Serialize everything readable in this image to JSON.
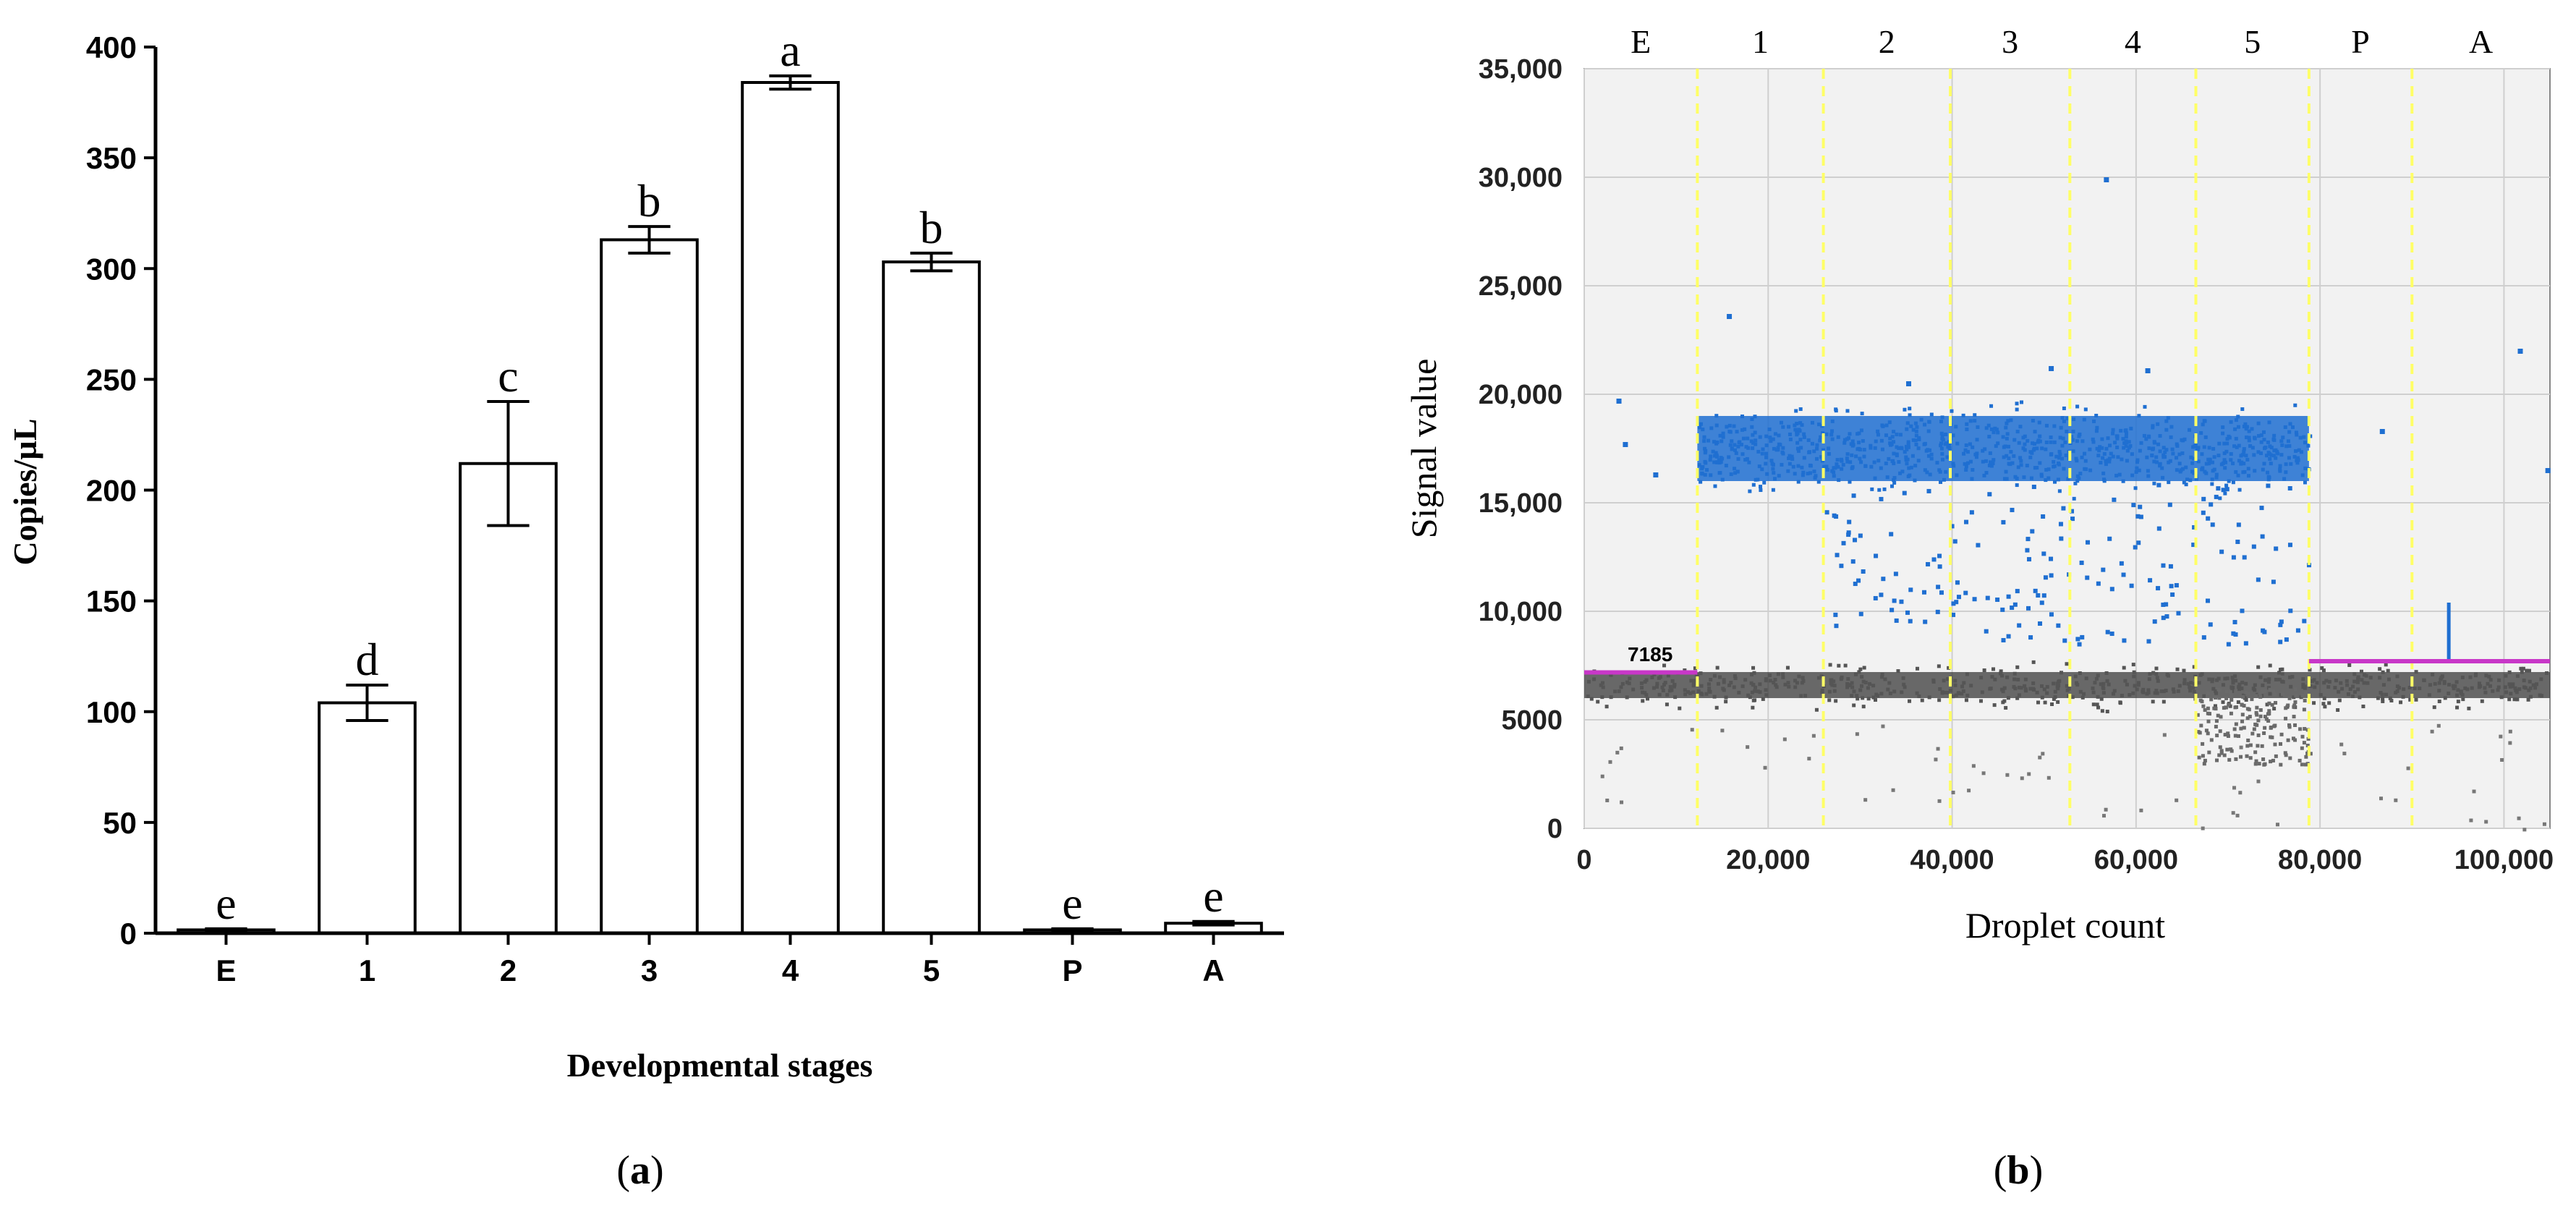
{
  "chart_data": [
    {
      "type": "bar",
      "panel_label": "a",
      "xlabel": "Developmental stages",
      "ylabel": "Copies/µL",
      "ylim": [
        0,
        400
      ],
      "yticks": [
        0,
        50,
        100,
        150,
        200,
        250,
        300,
        350,
        400
      ],
      "categories": [
        "E",
        "1",
        "2",
        "3",
        "4",
        "5",
        "P",
        "A"
      ],
      "values": [
        1.5,
        104,
        212,
        313,
        384,
        303,
        1.5,
        4.5
      ],
      "errors": [
        0.5,
        8,
        28,
        6,
        3,
        4,
        0.5,
        0.8
      ],
      "significance": [
        "e",
        "d",
        "c",
        "b",
        "a",
        "b",
        "e",
        "e"
      ],
      "colors": {
        "bar_fill": "#ffffff",
        "bar_stroke": "#000000"
      }
    },
    {
      "type": "scatter",
      "panel_label": "b",
      "xlabel": "Droplet count",
      "ylabel": "Signal value",
      "xlim": [
        0,
        105000
      ],
      "ylim": [
        0,
        35000
      ],
      "xticks": [
        {
          "value": 0,
          "label": "0"
        },
        {
          "value": 20000,
          "label": "20,000"
        },
        {
          "value": 40000,
          "label": "40,000"
        },
        {
          "value": 60000,
          "label": "60,000"
        },
        {
          "value": 80000,
          "label": "80,000"
        },
        {
          "value": 100000,
          "label": "100,000"
        }
      ],
      "yticks": [
        {
          "value": 0,
          "label": "0"
        },
        {
          "value": 5000,
          "label": "5000"
        },
        {
          "value": 10000,
          "label": "10,000"
        },
        {
          "value": 15000,
          "label": "15,000"
        },
        {
          "value": 20000,
          "label": "20,000"
        },
        {
          "value": 25000,
          "label": "25,000"
        },
        {
          "value": 30000,
          "label": "30,000"
        },
        {
          "value": 35000,
          "label": "35,000"
        }
      ],
      "lane_labels": [
        "E",
        "1",
        "2",
        "3",
        "4",
        "5",
        "P",
        "A"
      ],
      "lane_boundaries": [
        12300,
        26000,
        39800,
        52800,
        66500,
        78800,
        90000
      ],
      "threshold_label": "7185",
      "thresholds": [
        {
          "x_start": 0,
          "x_end": 12300,
          "value": 7185
        },
        {
          "x_start": 78800,
          "x_end": 105000,
          "value": 7700
        }
      ],
      "positive_band": {
        "x_start": 12300,
        "x_end": 78800,
        "center": 17500,
        "spread": 1500
      },
      "negative_band": {
        "x_start": 0,
        "x_end": 105000,
        "center": 6600,
        "spread": 600
      },
      "outliers": [
        {
          "x": 3500,
          "y": 19800
        },
        {
          "x": 4200,
          "y": 17800
        },
        {
          "x": 7500,
          "y": 16400
        },
        {
          "x": 15500,
          "y": 23700
        },
        {
          "x": 56500,
          "y": 30000
        },
        {
          "x": 86500,
          "y": 18400
        },
        {
          "x": 101500,
          "y": 22100
        },
        {
          "x": 104500,
          "y": 16600
        },
        {
          "x": 61000,
          "y": 21200
        },
        {
          "x": 50500,
          "y": 21300
        },
        {
          "x": 35000,
          "y": 20600
        }
      ],
      "a_lane_spike": {
        "x": 94000,
        "y_low": 7800,
        "y_high": 10400
      },
      "colors": {
        "positive": "#1f6fd1",
        "negative": "#3a3a3a",
        "threshold": "#c837c8",
        "lane_line": "#ffff66",
        "plot_bg": "#f2f2f2",
        "grid": "#cfcfcf"
      }
    }
  ],
  "captions": {
    "a": "a",
    "b": "b"
  }
}
